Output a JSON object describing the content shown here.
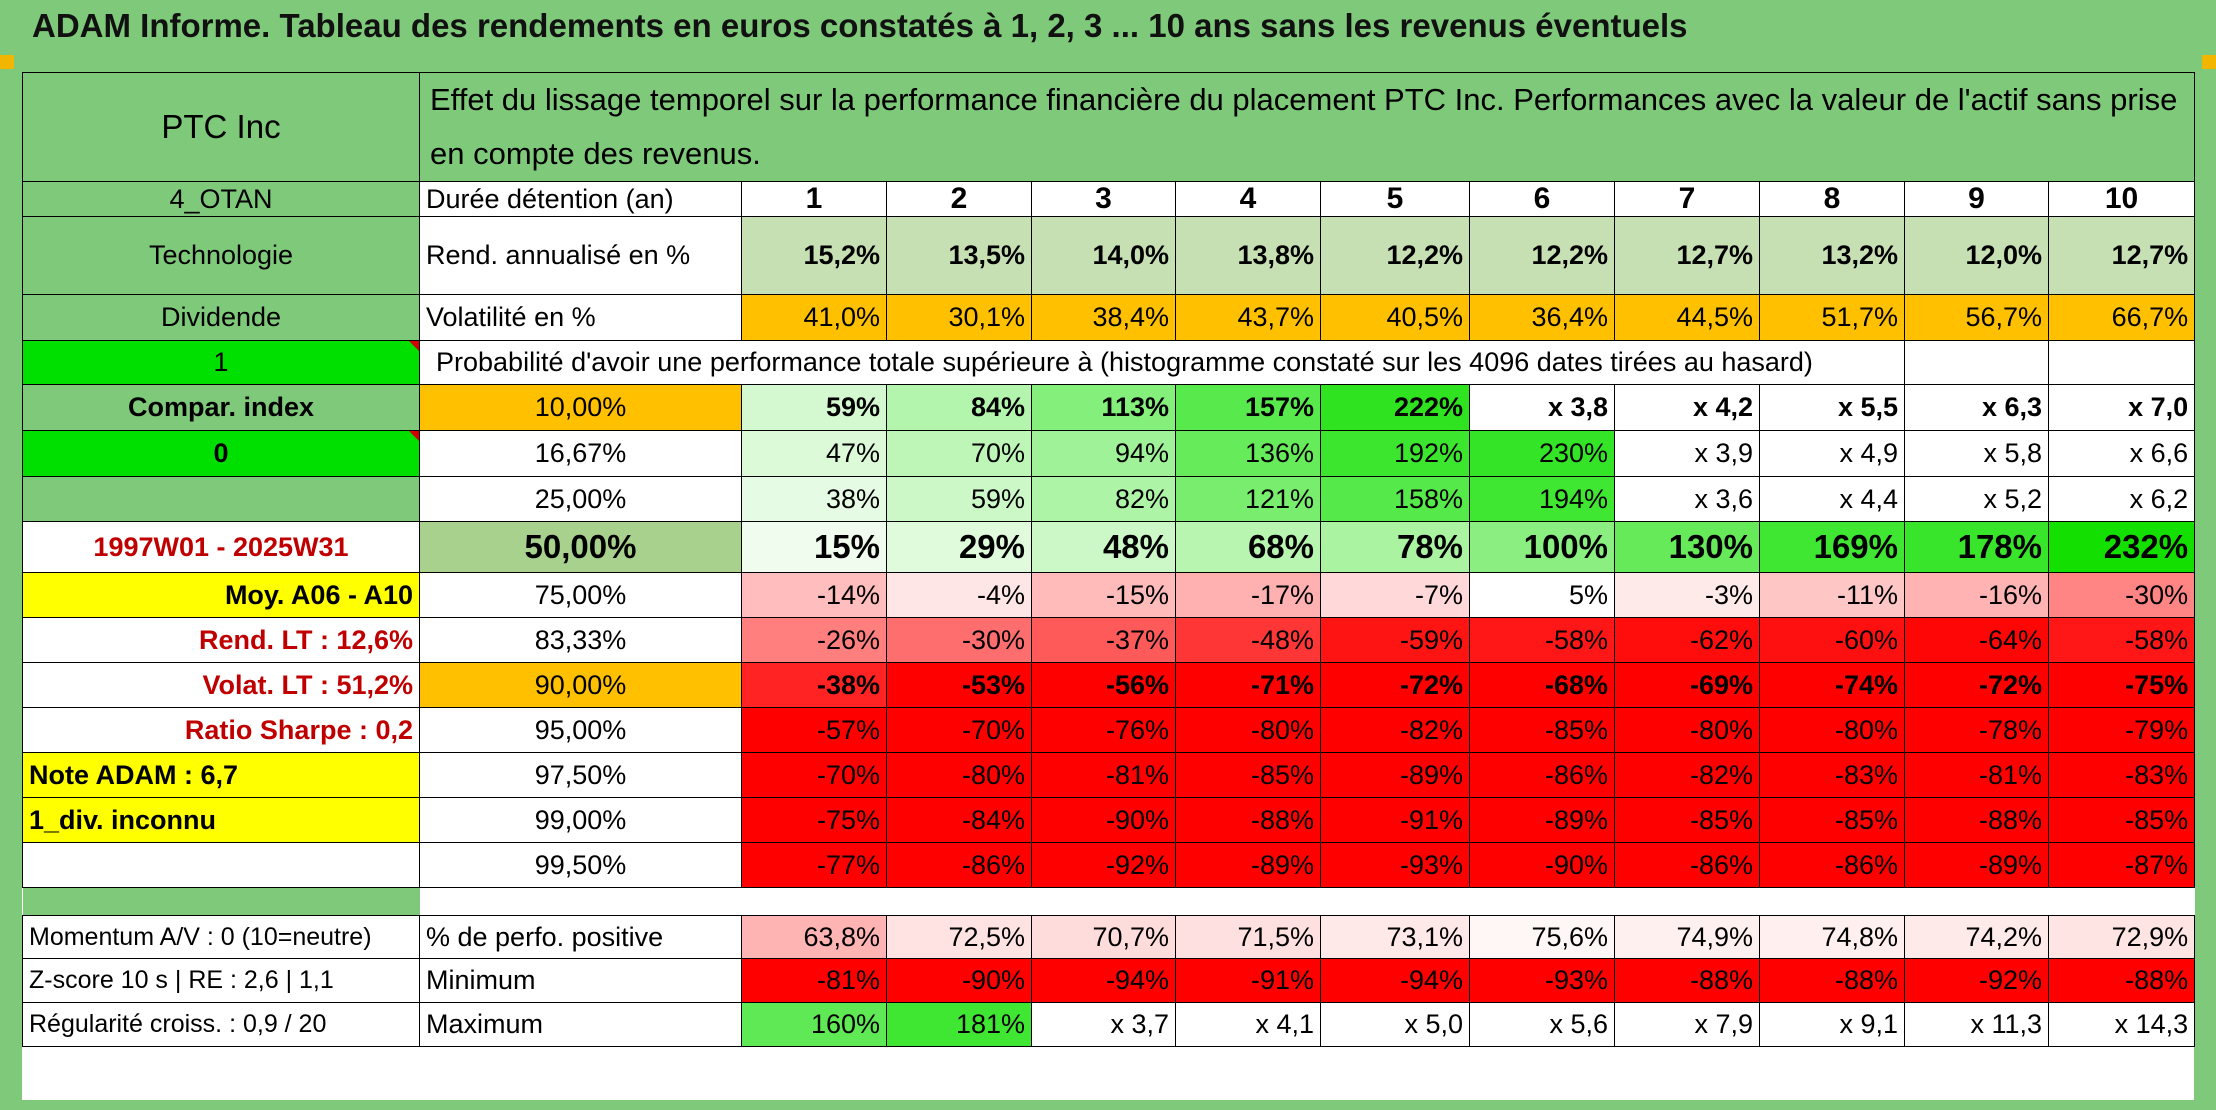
{
  "banner": {
    "title": "ADAM Informe. Tableau des rendements en euros constatés à 1, 2, 3 ... 10 ans sans les revenus éventuels"
  },
  "side": {
    "name": "PTC Inc",
    "code": "4_OTAN",
    "sector": "Technologie",
    "dividend": "Dividende",
    "flag1": "1",
    "compar": "Compar. index",
    "flag0": "0",
    "period": "1997W01 - 2025W31",
    "moy": "Moy. A06 - A10",
    "rend_lt": "Rend. LT :   12,6%",
    "volat_lt": "Volat. LT :   51,2%",
    "sharpe": "Ratio Sharpe :   0,2",
    "note": "Note ADAM : 6,7",
    "div": "1_div. inconnu",
    "momentum": "Momentum A/V : 0 (10=neutre)",
    "zscore": "Z-score 10 s | RE : 2,6 | 1,1",
    "regularite": "Régularité croiss. : 0,9 / 20"
  },
  "header_text": "Effet du lissage temporel sur la performance financière du placement PTC Inc. Performances avec la valeur de l'actif sans prise en compte des revenus.",
  "prob_title": "Probabilité d'avoir une performance totale supérieure à (histogramme constaté sur les 4096 dates tirées au hasard)",
  "duration_label": "Durée détention (an)",
  "years": [
    "1",
    "2",
    "3",
    "4",
    "5",
    "6",
    "7",
    "8",
    "9",
    "10"
  ],
  "rend": {
    "label": "Rend. annualisé en %",
    "values": [
      "15,2%",
      "13,5%",
      "14,0%",
      "13,8%",
      "12,2%",
      "12,2%",
      "12,7%",
      "13,2%",
      "12,0%",
      "12,7%"
    ]
  },
  "vol": {
    "label": "Volatilité en %",
    "values": [
      "41,0%",
      "30,1%",
      "38,4%",
      "43,7%",
      "40,5%",
      "36,4%",
      "44,5%",
      "51,7%",
      "56,7%",
      "66,7%"
    ]
  },
  "prob_rows": [
    {
      "label": "10,00%",
      "values": [
        "59%",
        "84%",
        "113%",
        "157%",
        "222%",
        "x 3,8",
        "x 4,2",
        "x 5,5",
        "x 6,3",
        "x 7,0"
      ]
    },
    {
      "label": "16,67%",
      "values": [
        "47%",
        "70%",
        "94%",
        "136%",
        "192%",
        "230%",
        "x 3,9",
        "x 4,9",
        "x 5,8",
        "x 6,6"
      ]
    },
    {
      "label": "25,00%",
      "values": [
        "38%",
        "59%",
        "82%",
        "121%",
        "158%",
        "194%",
        "x 3,6",
        "x 4,4",
        "x 5,2",
        "x 6,2"
      ]
    },
    {
      "label": "50,00%",
      "values": [
        "15%",
        "29%",
        "48%",
        "68%",
        "78%",
        "100%",
        "130%",
        "169%",
        "178%",
        "232%"
      ]
    },
    {
      "label": "75,00%",
      "values": [
        "-14%",
        "-4%",
        "-15%",
        "-17%",
        "-7%",
        "5%",
        "-3%",
        "-11%",
        "-16%",
        "-30%"
      ]
    },
    {
      "label": "83,33%",
      "values": [
        "-26%",
        "-30%",
        "-37%",
        "-48%",
        "-59%",
        "-58%",
        "-62%",
        "-60%",
        "-64%",
        "-58%"
      ]
    },
    {
      "label": "90,00%",
      "values": [
        "-38%",
        "-53%",
        "-56%",
        "-71%",
        "-72%",
        "-68%",
        "-69%",
        "-74%",
        "-72%",
        "-75%"
      ]
    },
    {
      "label": "95,00%",
      "values": [
        "-57%",
        "-70%",
        "-76%",
        "-80%",
        "-82%",
        "-85%",
        "-80%",
        "-80%",
        "-78%",
        "-79%"
      ]
    },
    {
      "label": "97,50%",
      "values": [
        "-70%",
        "-80%",
        "-81%",
        "-85%",
        "-89%",
        "-86%",
        "-82%",
        "-83%",
        "-81%",
        "-83%"
      ]
    },
    {
      "label": "99,00%",
      "values": [
        "-75%",
        "-84%",
        "-90%",
        "-88%",
        "-91%",
        "-89%",
        "-85%",
        "-85%",
        "-88%",
        "-85%"
      ]
    },
    {
      "label": "99,50%",
      "values": [
        "-77%",
        "-86%",
        "-92%",
        "-89%",
        "-93%",
        "-90%",
        "-86%",
        "-86%",
        "-89%",
        "-87%"
      ]
    }
  ],
  "positive": {
    "label": "% de perfo. positive",
    "values": [
      "63,8%",
      "72,5%",
      "70,7%",
      "71,5%",
      "73,1%",
      "75,6%",
      "74,9%",
      "74,8%",
      "74,2%",
      "72,9%"
    ]
  },
  "minimum": {
    "label": "Minimum",
    "values": [
      "-81%",
      "-90%",
      "-94%",
      "-91%",
      "-94%",
      "-93%",
      "-88%",
      "-88%",
      "-92%",
      "-88%"
    ]
  },
  "maximum": {
    "label": "Maximum",
    "values": [
      "160%",
      "181%",
      "x 3,7",
      "x 4,1",
      "x 5,0",
      "x 5,6",
      "x 7,9",
      "x 9,1",
      "x 11,3",
      "x 14,3"
    ]
  },
  "colors": {
    "header_green": "#7fc97a",
    "bright_green": "#00e000",
    "yellow": "#ffff00",
    "orange": "#ffc000",
    "label_red": "#c00000",
    "prob_row_fills": [
      [
        "#d4f8d0",
        "#b4f5ad",
        "#84ef7a",
        "#58ea4c",
        "#2fe320",
        "#ffffff",
        "#ffffff",
        "#ffffff",
        "#ffffff",
        "#ffffff"
      ],
      [
        "#dcfad8",
        "#bef6b8",
        "#a0f298",
        "#66eb5b",
        "#3ce62e",
        "#33e526",
        "#ffffff",
        "#ffffff",
        "#ffffff",
        "#ffffff"
      ],
      [
        "#e6fbe3",
        "#ccf8c7",
        "#aef4a7",
        "#78ed6e",
        "#55e949",
        "#3fe632",
        "#ffffff",
        "#ffffff",
        "#ffffff",
        "#ffffff"
      ],
      [
        "#f0fdee",
        "#e0fadc",
        "#cbf8c6",
        "#b8f5b1",
        "#a9f3a1",
        "#8aef80",
        "#66ea5a",
        "#3fe632",
        "#38e52b",
        "#14e000"
      ],
      [
        "#ffbdbd",
        "#ffe6e6",
        "#ffbaba",
        "#ffb0b0",
        "#ffd9d9",
        "#ffffff",
        "#ffeaea",
        "#ffc6c6",
        "#ffb3b3",
        "#ff8484"
      ],
      [
        "#ff7f7f",
        "#ff6e6e",
        "#ff5a5a",
        "#ff3636",
        "#ff1414",
        "#ff1616",
        "#ff0c0c",
        "#ff1010",
        "#ff0606",
        "#ff1616"
      ],
      [
        "#ff2323",
        "#ff0000",
        "#ff0000",
        "#ff0000",
        "#ff0000",
        "#ff0000",
        "#ff0000",
        "#ff0000",
        "#ff0000",
        "#ff0000"
      ],
      [
        "#ff0000",
        "#ff0000",
        "#ff0000",
        "#ff0000",
        "#ff0000",
        "#ff0000",
        "#ff0000",
        "#ff0000",
        "#ff0000",
        "#ff0000"
      ],
      [
        "#ff0000",
        "#ff0000",
        "#ff0000",
        "#ff0000",
        "#ff0000",
        "#ff0000",
        "#ff0000",
        "#ff0000",
        "#ff0000",
        "#ff0000"
      ],
      [
        "#ff0000",
        "#ff0000",
        "#ff0000",
        "#ff0000",
        "#ff0000",
        "#ff0000",
        "#ff0000",
        "#ff0000",
        "#ff0000",
        "#ff0000"
      ],
      [
        "#ff0000",
        "#ff0000",
        "#ff0000",
        "#ff0000",
        "#ff0000",
        "#ff0000",
        "#ff0000",
        "#ff0000",
        "#ff0000",
        "#ff0000"
      ]
    ],
    "prob_label_fills": [
      "#ffc000",
      "#ffffff",
      "#ffffff",
      "#a9d18e",
      "#ffffff",
      "#ffffff",
      "#ffc000",
      "#ffffff",
      "#ffffff",
      "#ffffff",
      "#ffffff"
    ],
    "positive_fills": [
      "#ffb4b4",
      "#ffe3e3",
      "#ffdcdc",
      "#ffe0e0",
      "#ffe8e8",
      "#fff6f6",
      "#fff0f0",
      "#ffefef",
      "#ffeaea",
      "#ffe4e4"
    ],
    "minimum_fills": [
      "#ff0000",
      "#ff0000",
      "#ff0000",
      "#ff0000",
      "#ff0000",
      "#ff0000",
      "#ff0000",
      "#ff0000",
      "#ff0000",
      "#ff0000"
    ],
    "maximum_fills": [
      "#5fe954",
      "#3fe632",
      "#ffffff",
      "#ffffff",
      "#ffffff",
      "#ffffff",
      "#ffffff",
      "#ffffff",
      "#ffffff",
      "#ffffff"
    ],
    "rend_fill": "#c6e0b4",
    "vol_fill": "#ffc000"
  }
}
